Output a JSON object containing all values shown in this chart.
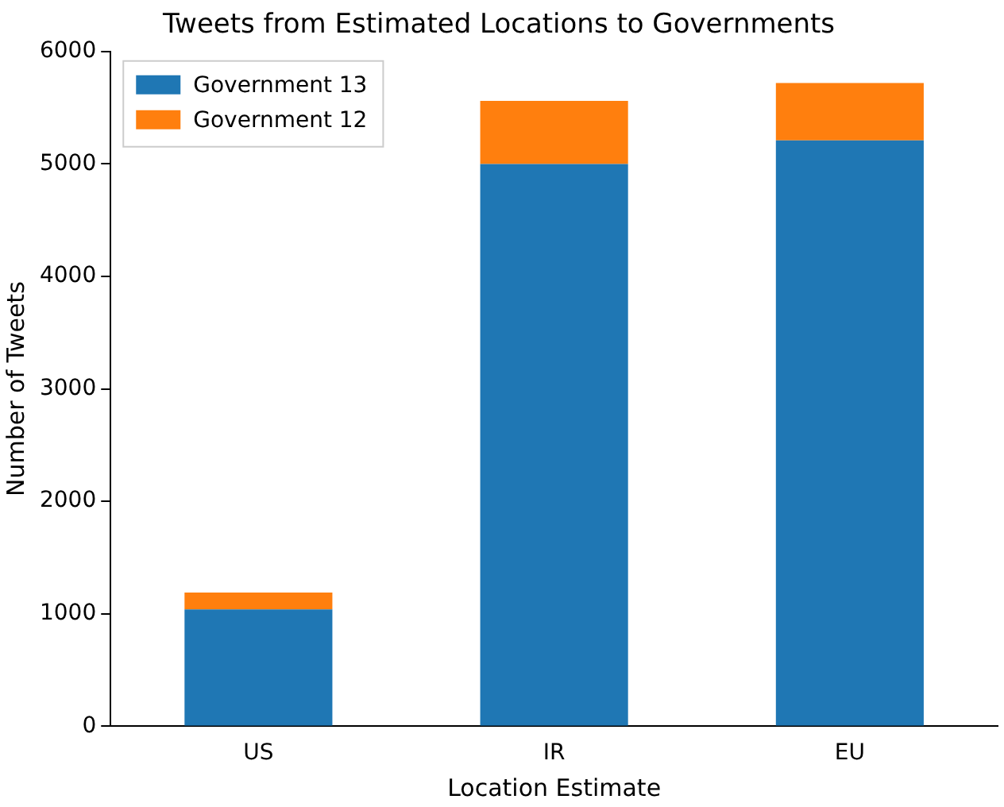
{
  "chart_data": {
    "type": "bar",
    "title": "Tweets from Estimated Locations to Governments",
    "xlabel": "Location Estimate",
    "ylabel": "Number of Tweets",
    "categories": [
      "US",
      "IR",
      "EU"
    ],
    "stacked": true,
    "series": [
      {
        "name": "Government 13",
        "color": "#1f77b4",
        "values": [
          1040,
          5000,
          5210
        ]
      },
      {
        "name": "Government 12",
        "color": "#ff7f0e",
        "values": [
          150,
          560,
          510
        ]
      }
    ],
    "ylim": [
      0,
      6000
    ],
    "yticks": [
      0,
      1000,
      2000,
      3000,
      4000,
      5000,
      6000
    ],
    "grid": false,
    "legend": "top left"
  }
}
